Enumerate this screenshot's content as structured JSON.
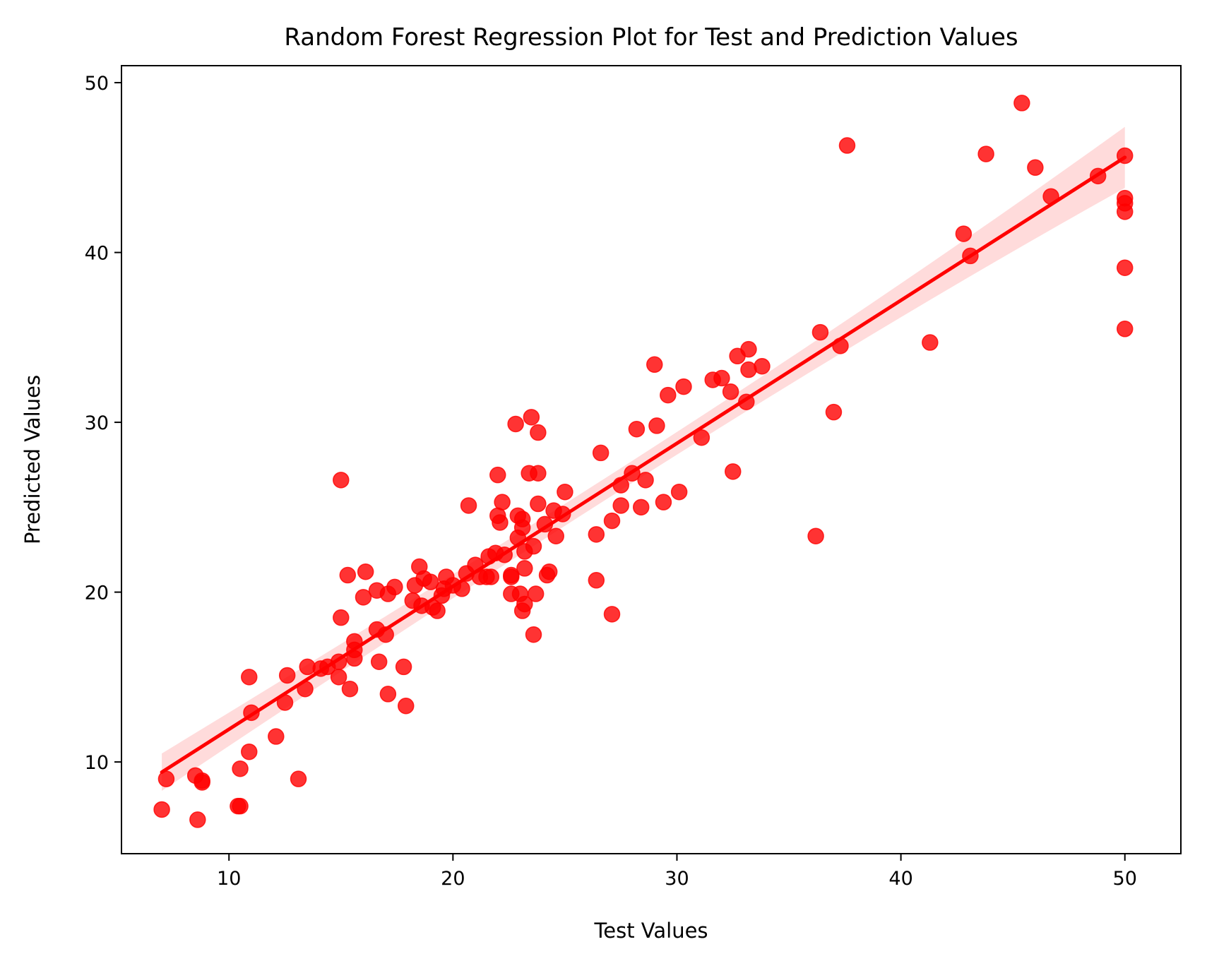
{
  "chart_data": {
    "type": "scatter",
    "title": "Random Forest Regression Plot for Test and Prediction Values",
    "xlabel": "Test Values",
    "ylabel": "Predicted Values",
    "xlim": [
      5.2,
      52.5
    ],
    "ylim": [
      4.6,
      51.0
    ],
    "xticks": [
      10,
      20,
      30,
      40,
      50
    ],
    "yticks": [
      10,
      20,
      30,
      40,
      50
    ],
    "grid": false,
    "colors": {
      "points": "#ff0000",
      "line": "#ff0000",
      "band": "#ff9999"
    },
    "regression": {
      "x": [
        7.0,
        50.0
      ],
      "y": [
        9.4,
        45.6
      ],
      "ci_half_width": [
        1.1,
        1.8
      ]
    },
    "points": [
      [
        7.0,
        7.2
      ],
      [
        7.2,
        9.0
      ],
      [
        8.5,
        9.2
      ],
      [
        8.6,
        6.6
      ],
      [
        8.8,
        8.8
      ],
      [
        8.8,
        8.9
      ],
      [
        10.4,
        7.4
      ],
      [
        10.5,
        7.4
      ],
      [
        10.5,
        9.6
      ],
      [
        10.9,
        10.6
      ],
      [
        10.9,
        15.0
      ],
      [
        11.0,
        12.9
      ],
      [
        12.1,
        11.5
      ],
      [
        12.5,
        13.5
      ],
      [
        12.6,
        15.1
      ],
      [
        13.1,
        9.0
      ],
      [
        13.4,
        14.3
      ],
      [
        13.5,
        15.6
      ],
      [
        14.1,
        15.5
      ],
      [
        14.4,
        15.6
      ],
      [
        14.9,
        15.9
      ],
      [
        14.9,
        15.0
      ],
      [
        15.0,
        18.5
      ],
      [
        15.0,
        26.6
      ],
      [
        15.3,
        21.0
      ],
      [
        15.4,
        14.3
      ],
      [
        15.6,
        17.1
      ],
      [
        15.6,
        16.6
      ],
      [
        15.6,
        16.1
      ],
      [
        16.0,
        19.7
      ],
      [
        16.1,
        21.2
      ],
      [
        16.6,
        20.1
      ],
      [
        16.6,
        17.8
      ],
      [
        16.7,
        15.9
      ],
      [
        17.0,
        17.5
      ],
      [
        17.1,
        14.0
      ],
      [
        17.1,
        19.9
      ],
      [
        17.4,
        20.3
      ],
      [
        17.8,
        15.6
      ],
      [
        17.9,
        13.3
      ],
      [
        18.2,
        19.5
      ],
      [
        18.3,
        20.4
      ],
      [
        18.5,
        21.5
      ],
      [
        18.6,
        19.2
      ],
      [
        18.7,
        20.8
      ],
      [
        19.0,
        20.6
      ],
      [
        19.1,
        19.1
      ],
      [
        19.3,
        18.9
      ],
      [
        19.5,
        19.8
      ],
      [
        19.6,
        20.2
      ],
      [
        19.7,
        20.9
      ],
      [
        20.0,
        20.4
      ],
      [
        20.4,
        20.2
      ],
      [
        20.6,
        21.1
      ],
      [
        20.7,
        25.1
      ],
      [
        21.0,
        21.6
      ],
      [
        21.2,
        20.9
      ],
      [
        21.5,
        20.9
      ],
      [
        21.6,
        22.1
      ],
      [
        21.7,
        20.9
      ],
      [
        21.9,
        22.3
      ],
      [
        22.0,
        26.9
      ],
      [
        22.0,
        24.5
      ],
      [
        22.1,
        24.1
      ],
      [
        22.2,
        25.3
      ],
      [
        22.3,
        22.2
      ],
      [
        22.6,
        21.0
      ],
      [
        22.6,
        20.9
      ],
      [
        22.6,
        19.9
      ],
      [
        22.8,
        29.9
      ],
      [
        22.9,
        24.5
      ],
      [
        22.9,
        23.2
      ],
      [
        23.0,
        19.9
      ],
      [
        23.1,
        24.3
      ],
      [
        23.1,
        23.8
      ],
      [
        23.1,
        18.9
      ],
      [
        23.2,
        22.4
      ],
      [
        23.2,
        19.3
      ],
      [
        23.2,
        21.4
      ],
      [
        23.4,
        27.0
      ],
      [
        23.5,
        30.3
      ],
      [
        23.6,
        22.7
      ],
      [
        23.6,
        17.5
      ],
      [
        23.7,
        19.9
      ],
      [
        23.8,
        25.2
      ],
      [
        23.8,
        27.0
      ],
      [
        23.8,
        29.4
      ],
      [
        24.1,
        24.0
      ],
      [
        24.2,
        21.0
      ],
      [
        24.3,
        21.2
      ],
      [
        24.5,
        24.8
      ],
      [
        24.6,
        23.3
      ],
      [
        24.9,
        24.6
      ],
      [
        25.0,
        25.9
      ],
      [
        26.4,
        20.7
      ],
      [
        26.4,
        23.4
      ],
      [
        26.6,
        28.2
      ],
      [
        27.1,
        24.2
      ],
      [
        27.1,
        18.7
      ],
      [
        27.5,
        26.3
      ],
      [
        27.5,
        25.1
      ],
      [
        28.0,
        27.0
      ],
      [
        28.2,
        29.6
      ],
      [
        28.4,
        25.0
      ],
      [
        28.6,
        26.6
      ],
      [
        29.0,
        33.4
      ],
      [
        29.1,
        29.8
      ],
      [
        29.4,
        25.3
      ],
      [
        29.6,
        31.6
      ],
      [
        30.1,
        25.9
      ],
      [
        30.3,
        32.1
      ],
      [
        31.1,
        29.1
      ],
      [
        31.6,
        32.5
      ],
      [
        32.0,
        32.6
      ],
      [
        32.4,
        31.8
      ],
      [
        32.5,
        27.1
      ],
      [
        32.7,
        33.9
      ],
      [
        33.1,
        31.2
      ],
      [
        33.2,
        33.1
      ],
      [
        33.2,
        34.3
      ],
      [
        33.8,
        33.3
      ],
      [
        36.2,
        23.3
      ],
      [
        36.4,
        35.3
      ],
      [
        37.0,
        30.6
      ],
      [
        37.3,
        34.5
      ],
      [
        37.6,
        46.3
      ],
      [
        41.3,
        34.7
      ],
      [
        42.8,
        41.1
      ],
      [
        43.1,
        39.8
      ],
      [
        43.8,
        45.8
      ],
      [
        45.4,
        48.8
      ],
      [
        46.0,
        45.0
      ],
      [
        46.7,
        43.3
      ],
      [
        48.8,
        44.5
      ],
      [
        50.0,
        45.7
      ],
      [
        50.0,
        43.2
      ],
      [
        50.0,
        42.9
      ],
      [
        50.0,
        42.4
      ],
      [
        50.0,
        39.1
      ],
      [
        50.0,
        35.5
      ]
    ]
  }
}
